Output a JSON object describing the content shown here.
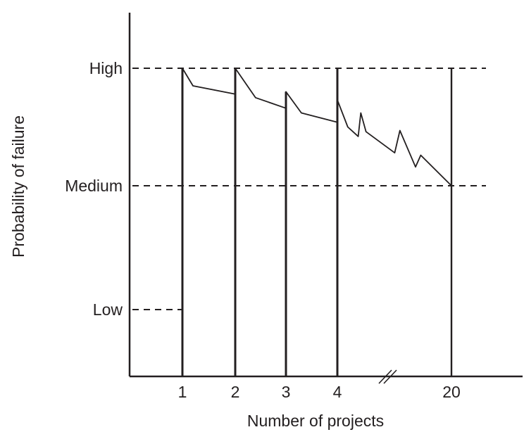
{
  "chart_data": {
    "type": "line",
    "xlabel": "Number of projects",
    "ylabel": "Probability of failure",
    "x_ticks": [
      "1",
      "2",
      "3",
      "4",
      "20"
    ],
    "y_ticks": [
      "High",
      "Medium",
      "Low"
    ],
    "y_levels": {
      "High": 3,
      "Medium": 2,
      "Low": 1
    },
    "x_axis_break": "between 4 and 20",
    "reference_lines": [
      {
        "level": "High",
        "style": "dashed"
      },
      {
        "level": "Medium",
        "style": "dashed"
      },
      {
        "level": "Low",
        "style": "dashed"
      }
    ],
    "series": [
      {
        "points": [
          {
            "x": "1",
            "y": 3.0
          },
          {
            "x": "1.2",
            "y": 2.85
          },
          {
            "x": "2",
            "y": 2.78
          },
          {
            "x": "2",
            "y": 3.0
          },
          {
            "x": "2.4",
            "y": 2.75
          },
          {
            "x": "3",
            "y": 2.66
          },
          {
            "x": "3",
            "y": 2.8
          },
          {
            "x": "3.3",
            "y": 2.62
          },
          {
            "x": "4",
            "y": 2.54
          },
          {
            "x": "4",
            "y": 2.73
          },
          {
            "x": "4.2",
            "y": 2.5
          },
          {
            "x": "4.4",
            "y": 2.42
          },
          {
            "x": "4.45",
            "y": 2.62
          },
          {
            "x": "4.55",
            "y": 2.46
          },
          {
            "x": "5.1",
            "y": 2.28
          },
          {
            "x": "5.2",
            "y": 2.47
          },
          {
            "x": "5.5",
            "y": 2.16
          },
          {
            "x": "5.6",
            "y": 2.26
          },
          {
            "x": "20",
            "y": 2.0
          }
        ]
      }
    ]
  }
}
